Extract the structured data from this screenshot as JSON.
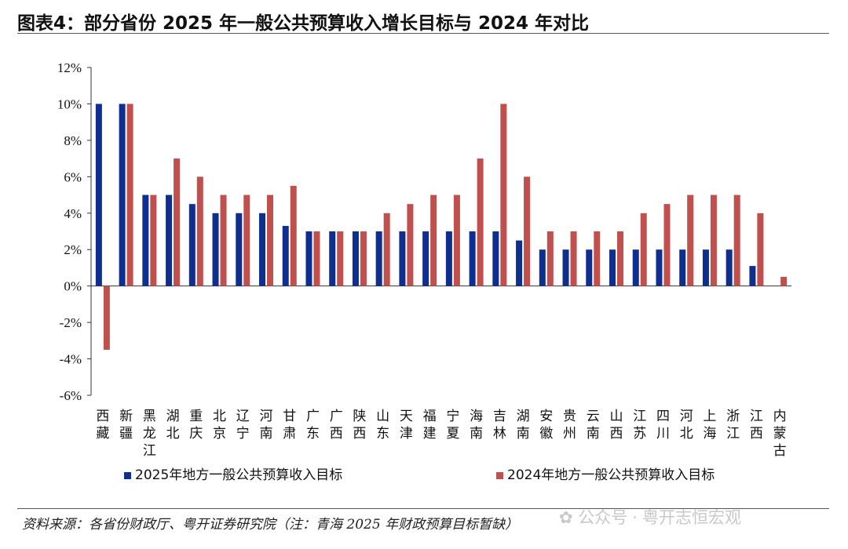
{
  "title": "图表4：部分省份 2025 年一般公共预算收入增长目标与 2024 年对比",
  "source": "资料来源：各省份财政厅、粤开证券研究院（注：青海 2025 年财政预算目标暂缺）",
  "watermark": {
    "account_label": "公众号",
    "sep": "·",
    "name": "粤开志恒宏观"
  },
  "colors": {
    "series_2025": "#0e2f8f",
    "series_2024": "#c0504d"
  },
  "chart_data": {
    "type": "bar",
    "title": "",
    "xlabel": "",
    "ylabel": "",
    "ylim": [
      -6,
      12
    ],
    "yticks": [
      -6,
      -4,
      -2,
      0,
      2,
      4,
      6,
      8,
      10,
      12
    ],
    "ytick_labels": [
      "-6%",
      "-4%",
      "-2%",
      "0%",
      "2%",
      "4%",
      "6%",
      "8%",
      "10%",
      "12%"
    ],
    "categories": [
      "西藏",
      "新疆",
      "黑龙江",
      "湖北",
      "重庆",
      "北京",
      "辽宁",
      "河南",
      "甘肃",
      "广东",
      "广西",
      "陕西",
      "山东",
      "天津",
      "福建",
      "宁夏",
      "海南",
      "吉林",
      "湖南",
      "安徽",
      "贵州",
      "云南",
      "山西",
      "江苏",
      "四川",
      "河北",
      "上海",
      "浙江",
      "江西",
      "内蒙古"
    ],
    "series": [
      {
        "name": "2025年地方一般公共预算收入目标",
        "color": "#0e2f8f",
        "values": [
          10,
          10,
          5,
          5,
          4.5,
          4,
          4,
          4,
          3.3,
          3,
          3,
          3,
          3,
          3,
          3,
          3,
          3,
          3,
          2.5,
          2,
          2,
          2,
          2,
          2,
          2,
          2,
          2,
          2,
          1.1,
          null
        ]
      },
      {
        "name": "2024年地方一般公共预算收入目标",
        "color": "#c0504d",
        "values": [
          -3.5,
          10,
          5,
          7,
          6,
          5,
          5,
          5,
          5.5,
          3,
          3,
          3,
          4,
          4.5,
          5,
          5,
          7,
          10,
          6,
          3,
          3,
          3,
          3,
          4,
          4.5,
          5,
          5,
          5,
          4,
          0.5
        ]
      }
    ],
    "legend_position": "bottom"
  }
}
